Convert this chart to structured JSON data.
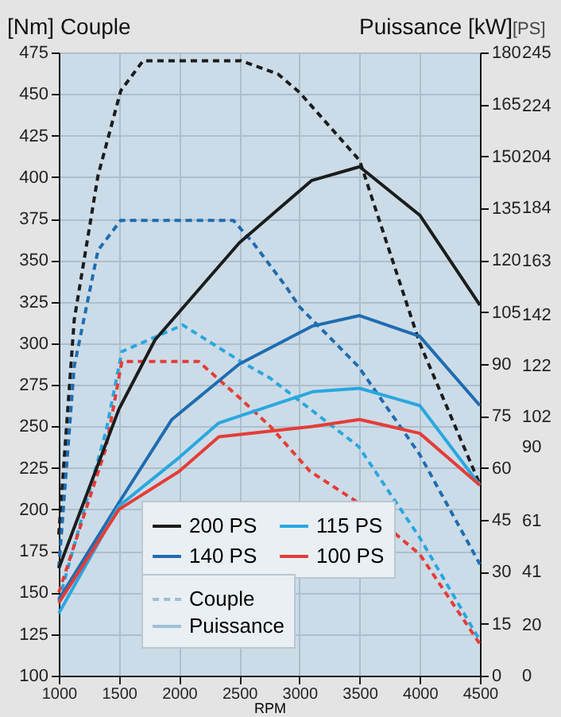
{
  "chart_data": {
    "type": "line",
    "xlabel": "RPM",
    "ylabel": "[Nm] Couple",
    "y2label": "Puissance [kW]",
    "y3label": "[PS]",
    "xlim": [
      1000,
      4500
    ],
    "xticks": [
      1000,
      1500,
      2000,
      2500,
      3000,
      3500,
      4000,
      4500
    ],
    "ylim": [
      100,
      475
    ],
    "yticks": [
      100,
      125,
      150,
      175,
      200,
      225,
      250,
      275,
      300,
      325,
      350,
      375,
      400,
      425,
      450,
      475
    ],
    "y2lim": [
      0,
      180
    ],
    "y2ticks": [
      0,
      15,
      30,
      45,
      60,
      75,
      90,
      105,
      120,
      135,
      150,
      165,
      180
    ],
    "y3lim": [
      0,
      245
    ],
    "y3ticks": [
      0,
      20,
      41,
      61,
      90,
      102,
      122,
      142,
      163,
      184,
      204,
      224,
      245
    ],
    "grid": true,
    "legend": "bottom left",
    "marker": "none",
    "annotations": [
      "Couple",
      "Puissance"
    ],
    "series": [
      {
        "name": "200 PS",
        "color": "#1c1c1c",
        "line_style": "dashed",
        "x": [
          1000,
          1128,
          1326,
          1515,
          1700,
          2514,
          2822,
          3000,
          3500,
          4000,
          4500
        ],
        "values": [
          185,
          314,
          401,
          452,
          470,
          470,
          462,
          451,
          410,
          300,
          215
        ]
      },
      {
        "name": "140 PS",
        "color": "#1f6cb0",
        "line_style": "dashed",
        "x": [
          1000,
          1128,
          1326,
          1515,
          2450,
          2620,
          2889,
          3000,
          3490,
          4000,
          4500
        ],
        "values": [
          165,
          286,
          356,
          374,
          374,
          360,
          334,
          322,
          286,
          233,
          167
        ]
      },
      {
        "name": "115 PS",
        "color": "#2aa7df",
        "line_style": "dashed",
        "x": [
          1000,
          1392,
          1524,
          2030,
          2514,
          2757,
          3490,
          4000,
          4500
        ],
        "values": [
          145,
          247,
          295,
          311,
          289,
          279,
          238,
          183,
          121
        ]
      },
      {
        "name": "100 PS",
        "color": "#e43d37",
        "line_style": "dashed",
        "x": [
          1000,
          1392,
          1524,
          2162,
          2490,
          2757,
          3087,
          3490,
          4000,
          4500
        ],
        "values": [
          150,
          237,
          289,
          289,
          268,
          250,
          223,
          204,
          173,
          119
        ]
      },
      {
        "color": "#1c1c1c",
        "line_style": "solid",
        "axis": "y2",
        "x": [
          1000,
          1500,
          1800,
          2500,
          3100,
          3500,
          4000,
          4500
        ],
        "values": [
          31,
          77,
          97,
          125,
          143,
          147,
          133,
          107
        ]
      },
      {
        "color": "#1f6cb0",
        "line_style": "solid",
        "axis": "y2",
        "x": [
          1000,
          1500,
          1940,
          2500,
          3110,
          3500,
          4000,
          4500
        ],
        "values": [
          22,
          50,
          74,
          90,
          101,
          104,
          98,
          78
        ]
      },
      {
        "color": "#2aa7df",
        "line_style": "solid",
        "axis": "y2",
        "x": [
          1000,
          1500,
          2000,
          2330,
          3110,
          3500,
          4000,
          4500
        ],
        "values": [
          18,
          49,
          63,
          73,
          82,
          83,
          78,
          55
        ]
      },
      {
        "color": "#e43d37",
        "line_style": "solid",
        "axis": "y2",
        "x": [
          1000,
          1500,
          2000,
          2330,
          3110,
          3500,
          4000,
          4500
        ],
        "values": [
          21,
          48,
          59,
          69,
          72,
          74,
          70,
          55
        ]
      }
    ]
  }
}
